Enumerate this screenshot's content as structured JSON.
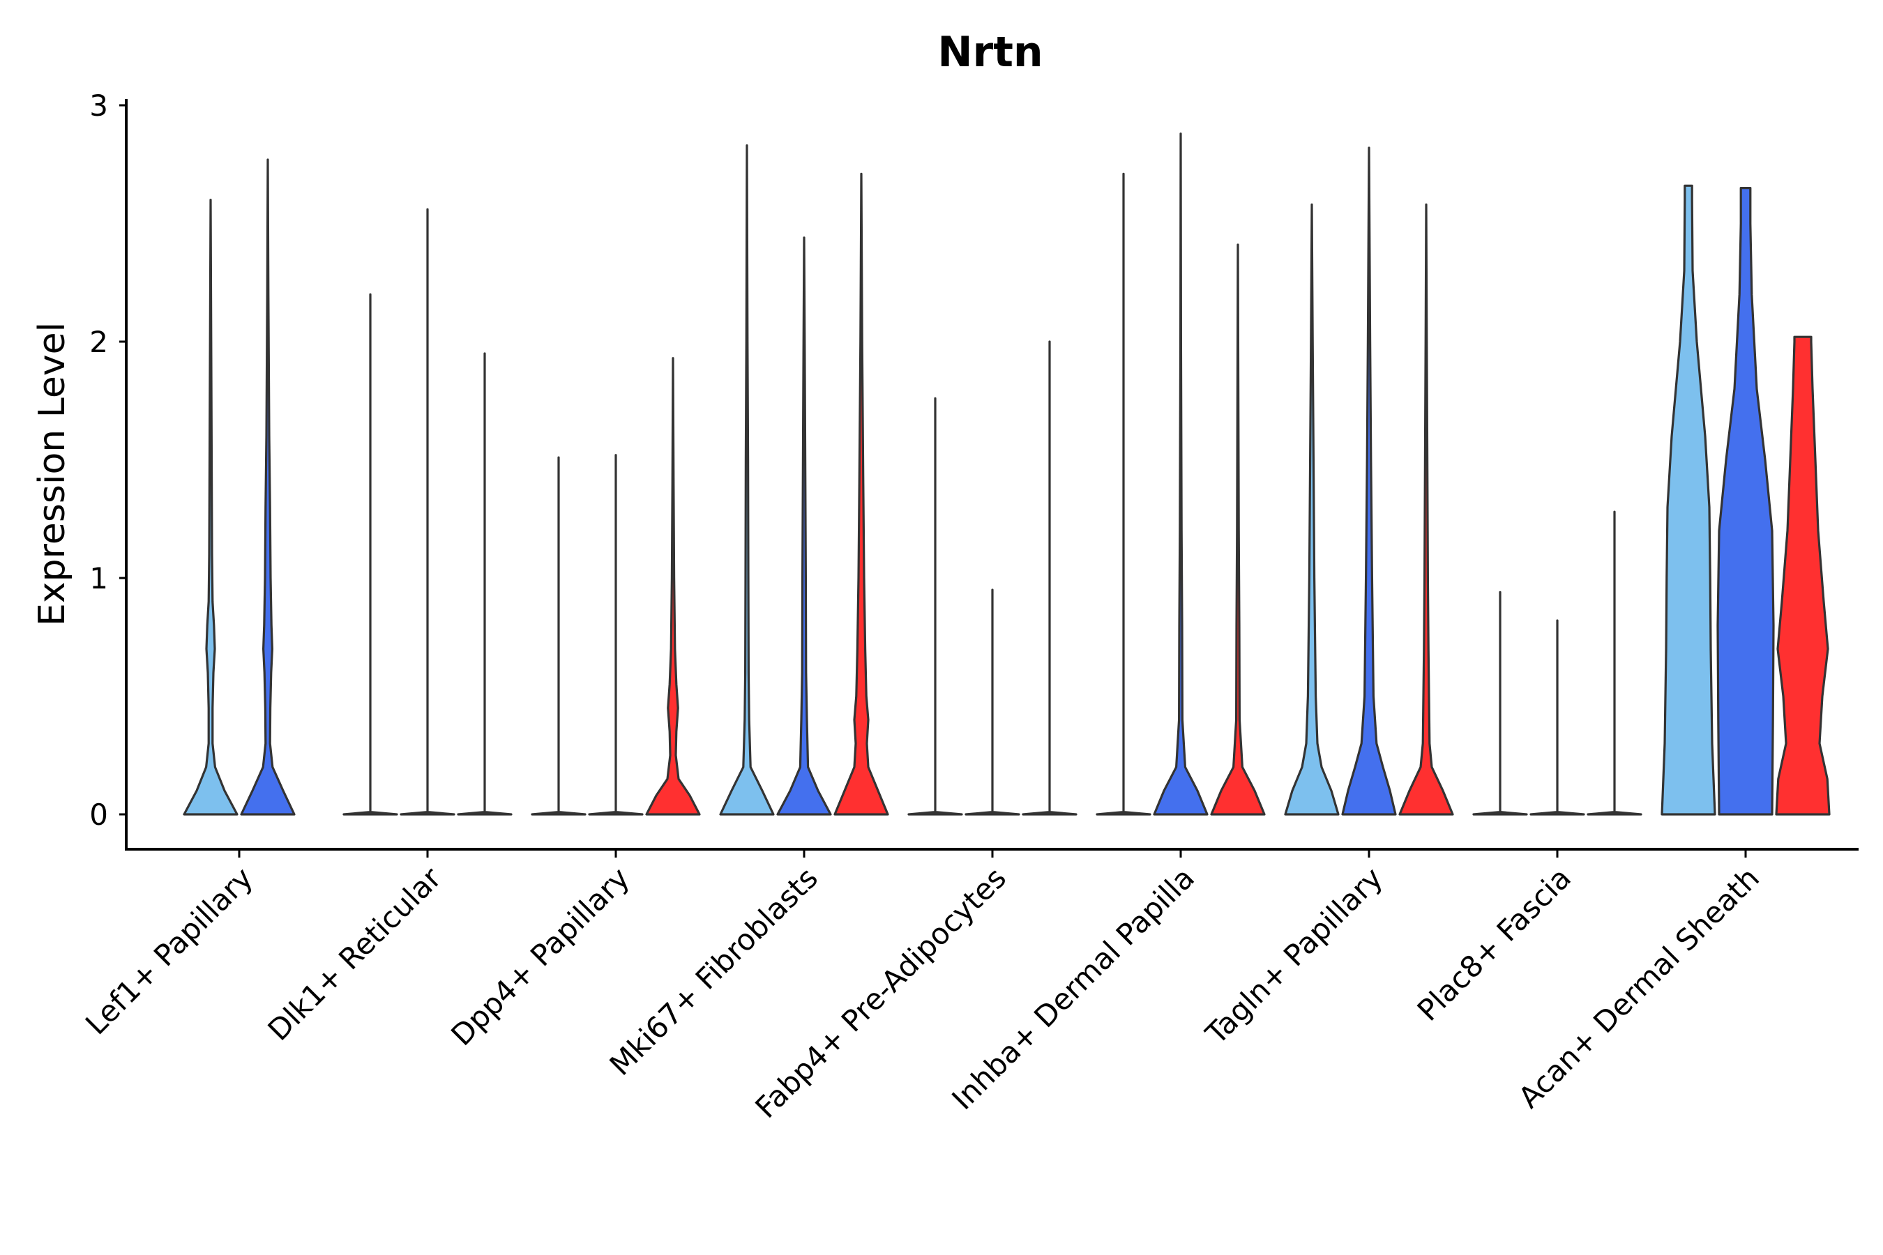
{
  "chart_data": {
    "type": "violin",
    "title": "Nrtn",
    "xlabel": "",
    "ylabel": "Expression Level",
    "ylim": [
      -0.14,
      3.05
    ],
    "yticks": [
      0,
      1,
      2,
      3
    ],
    "legend": "none",
    "grid": false,
    "series_colors": [
      "#7dc0ee",
      "#4470ee",
      "#ff3030"
    ],
    "categories": [
      {
        "label": "Lef1+ Papillary",
        "violins": [
          {
            "series": 0,
            "max": 2.6,
            "profile": [
              [
                0,
                0.95
              ],
              [
                0.1,
                0.5
              ],
              [
                0.2,
                0.16
              ],
              [
                0.3,
                0.07
              ],
              [
                0.45,
                0.07
              ],
              [
                0.6,
                0.1
              ],
              [
                0.7,
                0.15
              ],
              [
                0.8,
                0.12
              ],
              [
                0.9,
                0.07
              ],
              [
                1.1,
                0.05
              ],
              [
                1.4,
                0.04
              ],
              [
                2.0,
                0.02
              ],
              [
                2.6,
                0.0
              ]
            ]
          },
          {
            "series": 1,
            "max": 2.77,
            "profile": [
              [
                0,
                0.95
              ],
              [
                0.1,
                0.55
              ],
              [
                0.2,
                0.17
              ],
              [
                0.3,
                0.08
              ],
              [
                0.45,
                0.09
              ],
              [
                0.6,
                0.12
              ],
              [
                0.7,
                0.16
              ],
              [
                0.8,
                0.13
              ],
              [
                1.0,
                0.1
              ],
              [
                1.3,
                0.08
              ],
              [
                1.6,
                0.05
              ],
              [
                2.2,
                0.02
              ],
              [
                2.77,
                0.0
              ]
            ]
          }
        ]
      },
      {
        "label": "Dlk1+ Reticular",
        "violins": [
          {
            "series": 0,
            "max": 2.2,
            "profile": [
              [
                0,
                0.95
              ],
              [
                0.01,
                0.0
              ],
              [
                2.2,
                0.0
              ]
            ]
          },
          {
            "series": 1,
            "max": 2.56,
            "profile": [
              [
                0,
                0.95
              ],
              [
                0.01,
                0.0
              ],
              [
                2.56,
                0.0
              ]
            ]
          },
          {
            "series": 2,
            "max": 1.95,
            "profile": [
              [
                0,
                0.95
              ],
              [
                0.01,
                0.0
              ],
              [
                1.95,
                0.0
              ]
            ]
          }
        ]
      },
      {
        "label": "Dpp4+ Papillary",
        "violins": [
          {
            "series": 0,
            "max": 1.51,
            "profile": [
              [
                0,
                0.95
              ],
              [
                0.01,
                0.0
              ],
              [
                1.51,
                0.0
              ]
            ]
          },
          {
            "series": 1,
            "max": 1.52,
            "profile": [
              [
                0,
                0.95
              ],
              [
                0.01,
                0.0
              ],
              [
                1.52,
                0.0
              ]
            ]
          },
          {
            "series": 2,
            "max": 1.93,
            "profile": [
              [
                0,
                0.95
              ],
              [
                0.08,
                0.6
              ],
              [
                0.15,
                0.2
              ],
              [
                0.25,
                0.1
              ],
              [
                0.35,
                0.12
              ],
              [
                0.45,
                0.18
              ],
              [
                0.55,
                0.12
              ],
              [
                0.7,
                0.07
              ],
              [
                1.0,
                0.04
              ],
              [
                1.4,
                0.02
              ],
              [
                1.93,
                0.0
              ]
            ]
          }
        ]
      },
      {
        "label": "Mki67+ Fibroblasts",
        "violins": [
          {
            "series": 0,
            "max": 2.83,
            "profile": [
              [
                0,
                0.95
              ],
              [
                0.1,
                0.55
              ],
              [
                0.2,
                0.13
              ],
              [
                0.4,
                0.08
              ],
              [
                0.6,
                0.06
              ],
              [
                1.0,
                0.05
              ],
              [
                1.5,
                0.04
              ],
              [
                2.0,
                0.02
              ],
              [
                2.83,
                0.0
              ]
            ]
          },
          {
            "series": 1,
            "max": 2.44,
            "profile": [
              [
                0,
                0.95
              ],
              [
                0.1,
                0.5
              ],
              [
                0.2,
                0.14
              ],
              [
                0.4,
                0.1
              ],
              [
                0.6,
                0.07
              ],
              [
                1.0,
                0.06
              ],
              [
                1.5,
                0.04
              ],
              [
                2.0,
                0.02
              ],
              [
                2.44,
                0.0
              ]
            ]
          },
          {
            "series": 2,
            "max": 2.71,
            "profile": [
              [
                0,
                0.95
              ],
              [
                0.1,
                0.6
              ],
              [
                0.2,
                0.25
              ],
              [
                0.3,
                0.2
              ],
              [
                0.4,
                0.25
              ],
              [
                0.5,
                0.18
              ],
              [
                0.7,
                0.14
              ],
              [
                1.0,
                0.1
              ],
              [
                1.4,
                0.07
              ],
              [
                2.0,
                0.03
              ],
              [
                2.71,
                0.0
              ]
            ]
          }
        ]
      },
      {
        "label": "Fabp4+ Pre-Adipocytes",
        "violins": [
          {
            "series": 0,
            "max": 1.76,
            "profile": [
              [
                0,
                0.95
              ],
              [
                0.01,
                0.0
              ],
              [
                1.76,
                0.0
              ]
            ]
          },
          {
            "series": 1,
            "max": 0.95,
            "profile": [
              [
                0,
                0.95
              ],
              [
                0.01,
                0.0
              ],
              [
                0.95,
                0.0
              ]
            ]
          },
          {
            "series": 2,
            "max": 2.0,
            "profile": [
              [
                0,
                0.95
              ],
              [
                0.01,
                0.0
              ],
              [
                2.0,
                0.0
              ]
            ]
          }
        ]
      },
      {
        "label": "Inhba+ Dermal Papilla",
        "violins": [
          {
            "series": 0,
            "max": 2.71,
            "profile": [
              [
                0,
                0.95
              ],
              [
                0.01,
                0.0
              ],
              [
                2.71,
                0.0
              ]
            ]
          },
          {
            "series": 1,
            "max": 2.88,
            "profile": [
              [
                0,
                0.95
              ],
              [
                0.1,
                0.6
              ],
              [
                0.2,
                0.16
              ],
              [
                0.4,
                0.06
              ],
              [
                0.8,
                0.05
              ],
              [
                1.2,
                0.03
              ],
              [
                2.0,
                0.01
              ],
              [
                2.88,
                0.0
              ]
            ]
          },
          {
            "series": 2,
            "max": 2.41,
            "profile": [
              [
                0,
                0.95
              ],
              [
                0.1,
                0.6
              ],
              [
                0.2,
                0.16
              ],
              [
                0.4,
                0.06
              ],
              [
                0.8,
                0.05
              ],
              [
                1.2,
                0.03
              ],
              [
                2.0,
                0.01
              ],
              [
                2.41,
                0.0
              ]
            ]
          }
        ]
      },
      {
        "label": "Tagln+ Papillary",
        "violins": [
          {
            "series": 0,
            "max": 2.58,
            "profile": [
              [
                0,
                0.95
              ],
              [
                0.1,
                0.7
              ],
              [
                0.2,
                0.35
              ],
              [
                0.3,
                0.2
              ],
              [
                0.5,
                0.14
              ],
              [
                0.7,
                0.12
              ],
              [
                1.0,
                0.09
              ],
              [
                1.5,
                0.06
              ],
              [
                2.0,
                0.03
              ],
              [
                2.58,
                0.0
              ]
            ]
          },
          {
            "series": 1,
            "max": 2.82,
            "profile": [
              [
                0,
                0.95
              ],
              [
                0.1,
                0.75
              ],
              [
                0.2,
                0.5
              ],
              [
                0.3,
                0.27
              ],
              [
                0.5,
                0.16
              ],
              [
                0.7,
                0.14
              ],
              [
                1.0,
                0.11
              ],
              [
                1.5,
                0.07
              ],
              [
                2.0,
                0.04
              ],
              [
                2.82,
                0.0
              ]
            ]
          },
          {
            "series": 2,
            "max": 2.58,
            "profile": [
              [
                0,
                0.95
              ],
              [
                0.1,
                0.6
              ],
              [
                0.2,
                0.2
              ],
              [
                0.3,
                0.12
              ],
              [
                0.5,
                0.1
              ],
              [
                0.7,
                0.08
              ],
              [
                1.0,
                0.06
              ],
              [
                1.5,
                0.04
              ],
              [
                2.0,
                0.02
              ],
              [
                2.58,
                0.0
              ]
            ]
          }
        ]
      },
      {
        "label": "Plac8+ Fascia",
        "violins": [
          {
            "series": 0,
            "max": 0.94,
            "profile": [
              [
                0,
                0.95
              ],
              [
                0.01,
                0.0
              ],
              [
                0.94,
                0.0
              ]
            ]
          },
          {
            "series": 1,
            "max": 0.82,
            "profile": [
              [
                0,
                0.95
              ],
              [
                0.01,
                0.0
              ],
              [
                0.82,
                0.0
              ]
            ]
          },
          {
            "series": 2,
            "max": 1.28,
            "profile": [
              [
                0,
                0.95
              ],
              [
                0.01,
                0.0
              ],
              [
                1.28,
                0.0
              ]
            ]
          }
        ]
      },
      {
        "label": "Acan+ Dermal Sheath",
        "violins": [
          {
            "series": 0,
            "max": 2.66,
            "profile": [
              [
                0,
                0.95
              ],
              [
                0.3,
                0.85
              ],
              [
                0.7,
                0.8
              ],
              [
                1.0,
                0.78
              ],
              [
                1.3,
                0.75
              ],
              [
                1.6,
                0.6
              ],
              [
                2.0,
                0.3
              ],
              [
                2.3,
                0.15
              ],
              [
                2.6,
                0.13
              ],
              [
                2.66,
                0.13
              ]
            ]
          },
          {
            "series": 1,
            "max": 2.65,
            "profile": [
              [
                0,
                0.95
              ],
              [
                0.4,
                0.98
              ],
              [
                0.8,
                1.0
              ],
              [
                1.2,
                0.95
              ],
              [
                1.5,
                0.7
              ],
              [
                1.8,
                0.4
              ],
              [
                2.2,
                0.22
              ],
              [
                2.5,
                0.17
              ],
              [
                2.65,
                0.17
              ]
            ]
          },
          {
            "series": 2,
            "max": 2.02,
            "profile": [
              [
                0,
                0.95
              ],
              [
                0.15,
                0.88
              ],
              [
                0.3,
                0.6
              ],
              [
                0.5,
                0.7
              ],
              [
                0.7,
                0.9
              ],
              [
                0.9,
                0.75
              ],
              [
                1.2,
                0.55
              ],
              [
                1.5,
                0.45
              ],
              [
                1.8,
                0.35
              ],
              [
                2.0,
                0.3
              ],
              [
                2.02,
                0.3
              ]
            ]
          }
        ]
      }
    ]
  }
}
